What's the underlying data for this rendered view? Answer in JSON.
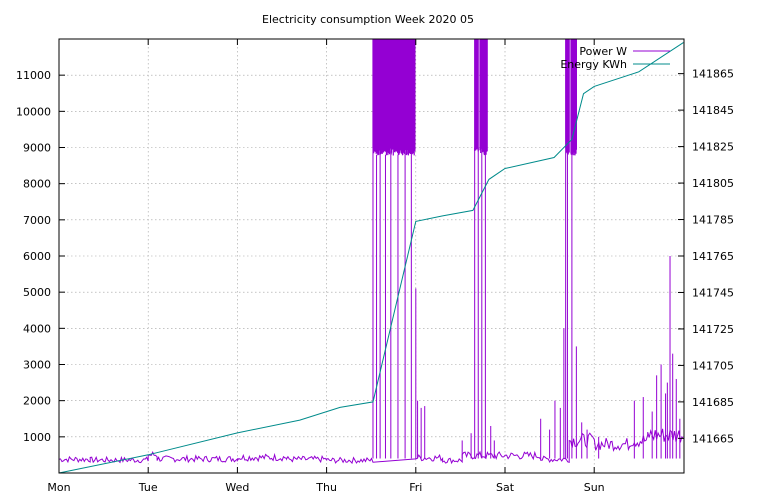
{
  "chart_data": {
    "type": "line",
    "title": "Electricity consumption Week 2020 05",
    "x_ticks": [
      "Mon",
      "Tue",
      "Wed",
      "Thu",
      "Fri",
      "Sat",
      "Sun"
    ],
    "x_unit": "days since Monday 00:00",
    "xlim": [
      0,
      7.0
    ],
    "y_ticks": [
      1000,
      2000,
      3000,
      4000,
      5000,
      6000,
      7000,
      8000,
      9000,
      10000,
      11000
    ],
    "ylim": [
      0,
      12000
    ],
    "y2_ticks": [
      141665,
      141685,
      141705,
      141725,
      141745,
      141765,
      141785,
      141805,
      141825,
      141845,
      141865
    ],
    "y2lim": [
      141646,
      141884
    ],
    "grid": true,
    "legend_position": "top-right",
    "series": [
      {
        "name": "Power W",
        "axis": "y",
        "color": "#9400d3",
        "base_segments": [
          [
            0.0,
            0.35,
            380
          ],
          [
            0.35,
            1.0,
            360
          ],
          [
            1.0,
            1.1,
            500
          ],
          [
            1.1,
            2.0,
            390
          ],
          [
            2.0,
            2.55,
            430
          ],
          [
            2.55,
            3.0,
            380
          ],
          [
            3.0,
            3.52,
            350
          ],
          [
            4.0,
            4.3,
            420
          ],
          [
            4.3,
            4.52,
            350
          ],
          [
            4.52,
            5.4,
            480
          ],
          [
            5.4,
            5.72,
            380
          ],
          [
            5.72,
            6.0,
            900
          ],
          [
            6.0,
            6.4,
            800
          ],
          [
            6.4,
            6.6,
            900
          ],
          [
            6.6,
            7.0,
            1050
          ]
        ],
        "dense_bursts": [
          [
            3.52,
            3.99,
            9000,
            12000
          ],
          [
            4.66,
            4.7,
            9000,
            12000
          ],
          [
            4.72,
            4.8,
            9000,
            12000
          ],
          [
            5.68,
            5.72,
            9000,
            12000
          ],
          [
            5.74,
            5.8,
            9000,
            12000
          ]
        ],
        "spikes": [
          [
            3.52,
            9000
          ],
          [
            3.56,
            8800
          ],
          [
            3.6,
            8900
          ],
          [
            3.66,
            8800
          ],
          [
            3.72,
            8900
          ],
          [
            3.8,
            8800
          ],
          [
            3.88,
            8900
          ],
          [
            3.95,
            8950
          ],
          [
            4.0,
            5100
          ],
          [
            4.02,
            2000
          ],
          [
            4.06,
            1800
          ],
          [
            4.1,
            1850
          ],
          [
            4.52,
            900
          ],
          [
            4.62,
            1100
          ],
          [
            4.66,
            9000
          ],
          [
            4.7,
            9000
          ],
          [
            4.74,
            9000
          ],
          [
            4.78,
            9000
          ],
          [
            4.84,
            1300
          ],
          [
            4.88,
            900
          ],
          [
            5.4,
            1500
          ],
          [
            5.5,
            1200
          ],
          [
            5.56,
            2000
          ],
          [
            5.62,
            1800
          ],
          [
            5.66,
            4000
          ],
          [
            5.68,
            9000
          ],
          [
            5.7,
            9000
          ],
          [
            5.75,
            9000
          ],
          [
            5.8,
            3500
          ],
          [
            5.86,
            1400
          ],
          [
            5.92,
            1200
          ],
          [
            6.05,
            1000
          ],
          [
            6.45,
            2000
          ],
          [
            6.55,
            2100
          ],
          [
            6.65,
            1700
          ],
          [
            6.7,
            2700
          ],
          [
            6.75,
            3000
          ],
          [
            6.8,
            2200
          ],
          [
            6.82,
            2500
          ],
          [
            6.85,
            6000
          ],
          [
            6.88,
            3300
          ],
          [
            6.92,
            2600
          ],
          [
            6.96,
            1500
          ]
        ]
      },
      {
        "name": "Energy KWh",
        "axis": "y2",
        "color": "#008b8b",
        "x": [
          0.0,
          1.0,
          2.0,
          2.7,
          3.15,
          3.52,
          4.0,
          4.3,
          4.64,
          4.82,
          5.0,
          5.55,
          5.75,
          5.88,
          6.0,
          6.5,
          7.0
        ],
        "y": [
          141646,
          141656,
          141668,
          141675,
          141682,
          141685,
          141784,
          141787,
          141790,
          141807,
          141813,
          141819,
          141829,
          141854,
          141858,
          141866,
          141882
        ]
      }
    ]
  }
}
